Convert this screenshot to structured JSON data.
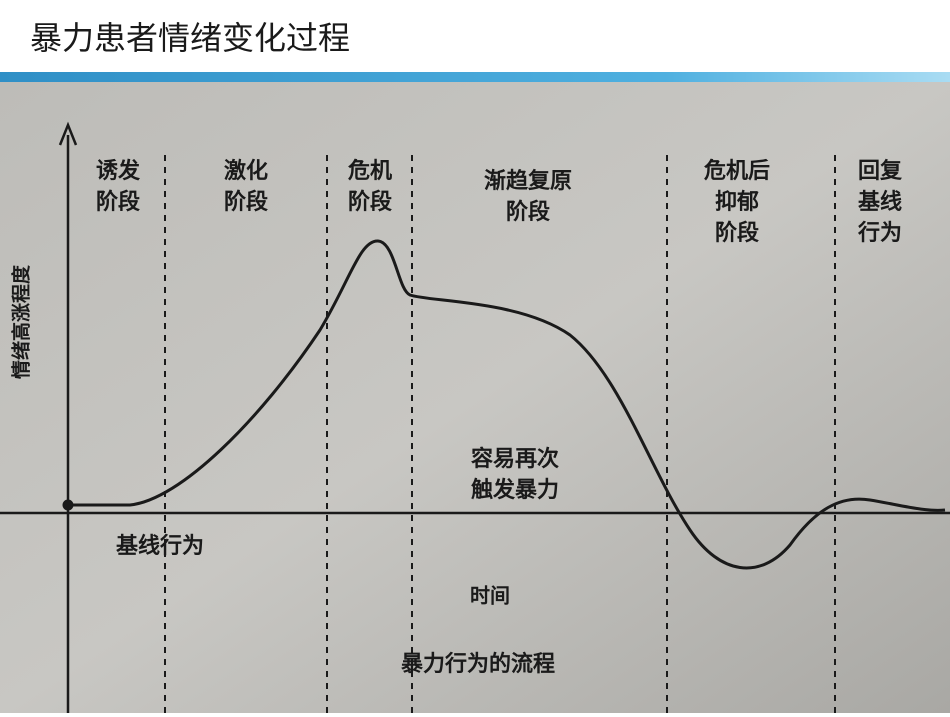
{
  "header": {
    "title": "暴力患者情绪变化过程"
  },
  "diagram": {
    "y_axis_label": "情绪高涨程度",
    "x_axis_label": "时间",
    "phases": [
      [
        "诱发",
        "阶段"
      ],
      [
        "激化",
        "阶段"
      ],
      [
        "危机",
        "阶段"
      ],
      [
        "渐趋复原",
        "阶段"
      ],
      [
        "危机后",
        "抑郁",
        "阶段"
      ],
      [
        "回复",
        "基线",
        "行为"
      ]
    ],
    "annotation": [
      "容易再次",
      "触发暴力"
    ],
    "baseline_label": "基线行为",
    "caption": "暴力行为的流程"
  }
}
